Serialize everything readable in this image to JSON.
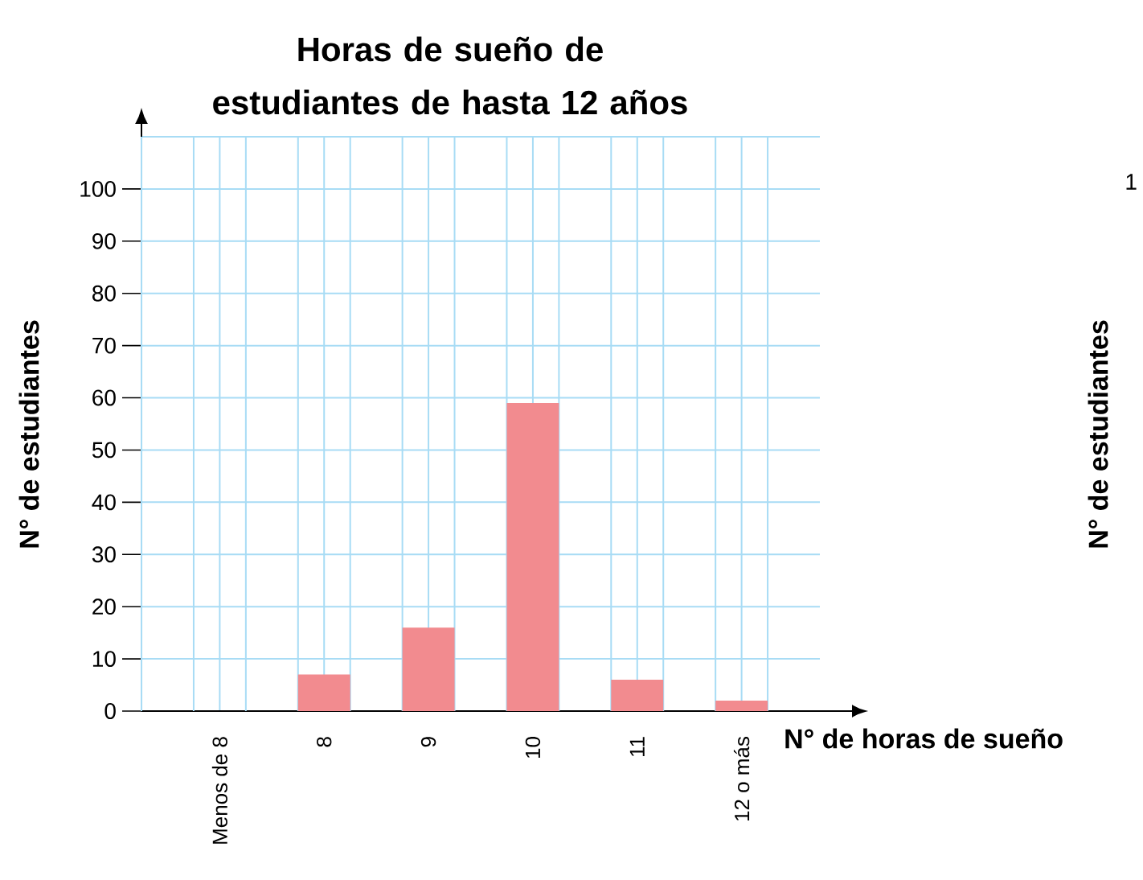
{
  "chart_data": {
    "type": "bar",
    "title": "Horas de sueño de estudiantes de hasta 12 años",
    "xlabel": "N° de horas de sueño",
    "ylabel": "N° de estudiantes",
    "categories": [
      "Menos de 8",
      "8",
      "9",
      "10",
      "11",
      "12 o más"
    ],
    "values": [
      0,
      7,
      16,
      59,
      6,
      2
    ],
    "color": "#f28b8f",
    "ylim": [
      0,
      110
    ],
    "yticks": [
      0,
      10,
      20,
      30,
      40,
      50,
      60,
      70,
      80,
      90,
      100
    ],
    "grid": true,
    "annotations": [
      "1",
      "N° de estudiantes"
    ]
  }
}
